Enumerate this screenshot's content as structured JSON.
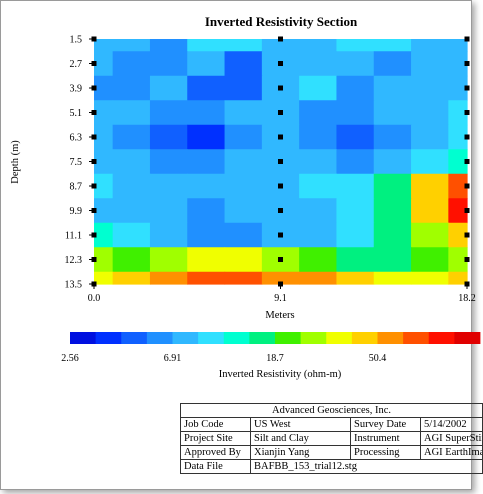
{
  "chart_data": {
    "type": "heatmap",
    "title": "Inverted Resistivity Section",
    "xlabel": "Meters",
    "ylabel": "Depth (m)",
    "x_ticks": [
      "0.0",
      "9.1",
      "18.2"
    ],
    "x_tick_values": [
      0.0,
      9.1,
      18.2
    ],
    "xlim": [
      0.0,
      18.2
    ],
    "y_ticks": [
      "1.5",
      "2.7",
      "3.9",
      "5.1",
      "6.3",
      "7.5",
      "8.7",
      "9.9",
      "11.1",
      "12.3",
      "13.5"
    ],
    "y_tick_values": [
      1.5,
      2.7,
      3.9,
      5.1,
      6.3,
      7.5,
      8.7,
      9.9,
      11.1,
      12.3,
      13.5
    ],
    "ylim": [
      13.5,
      1.5
    ],
    "colorbar_label": "Inverted Resistivity (ohm-m)",
    "colorbar_ticks": [
      "2.56",
      "6.91",
      "18.7",
      "50.4"
    ],
    "colorbar_colors": [
      "#0010e0",
      "#0030ff",
      "#1060ff",
      "#2090ff",
      "#30b8ff",
      "#30e0ff",
      "#00ffd0",
      "#00f080",
      "#40f000",
      "#a0ff00",
      "#f0ff00",
      "#ffd000",
      "#ff9000",
      "#ff5000",
      "#ff1000",
      "#e00000"
    ],
    "x": [
      0,
      1.82,
      3.64,
      5.46,
      7.28,
      9.1,
      10.92,
      12.74,
      14.56,
      16.38,
      18.2
    ],
    "y": [
      1.5,
      2.7,
      3.9,
      5.1,
      6.3,
      7.5,
      8.7,
      9.9,
      11.1,
      12.3,
      13.5
    ],
    "z_color_index": [
      [
        4,
        4,
        3,
        5,
        5,
        4,
        4,
        5,
        5,
        4,
        4
      ],
      [
        4,
        3,
        3,
        4,
        2,
        4,
        4,
        4,
        3,
        4,
        4
      ],
      [
        3,
        3,
        4,
        2,
        2,
        4,
        5,
        3,
        4,
        4,
        4
      ],
      [
        4,
        4,
        3,
        3,
        4,
        4,
        3,
        3,
        4,
        4,
        5
      ],
      [
        4,
        3,
        2,
        1,
        3,
        4,
        3,
        2,
        3,
        4,
        5
      ],
      [
        4,
        4,
        3,
        3,
        4,
        4,
        4,
        3,
        4,
        5,
        6
      ],
      [
        5,
        4,
        4,
        4,
        4,
        4,
        5,
        5,
        7,
        11,
        13
      ],
      [
        4,
        4,
        4,
        3,
        4,
        4,
        4,
        5,
        7,
        11,
        14
      ],
      [
        6,
        5,
        4,
        3,
        3,
        4,
        4,
        5,
        7,
        9,
        11
      ],
      [
        9,
        8,
        9,
        10,
        10,
        9,
        8,
        7,
        7,
        8,
        9
      ],
      [
        10,
        11,
        12,
        13,
        13,
        12,
        12,
        11,
        10,
        10,
        11
      ]
    ],
    "grid": false
  },
  "title_block": {
    "company": "Advanced Geosciences, Inc.",
    "rows": [
      [
        "Job Code",
        "US West",
        "Survey Date",
        "5/14/2002"
      ],
      [
        "Project Site",
        "Silt and Clay",
        "Instrument",
        "AGI SuperSting"
      ],
      [
        "Approved By",
        "Xianjin Yang",
        "Processing",
        "AGI EarthImager"
      ],
      [
        "Data File",
        "BAFBB_153_trial12.stg"
      ]
    ]
  }
}
